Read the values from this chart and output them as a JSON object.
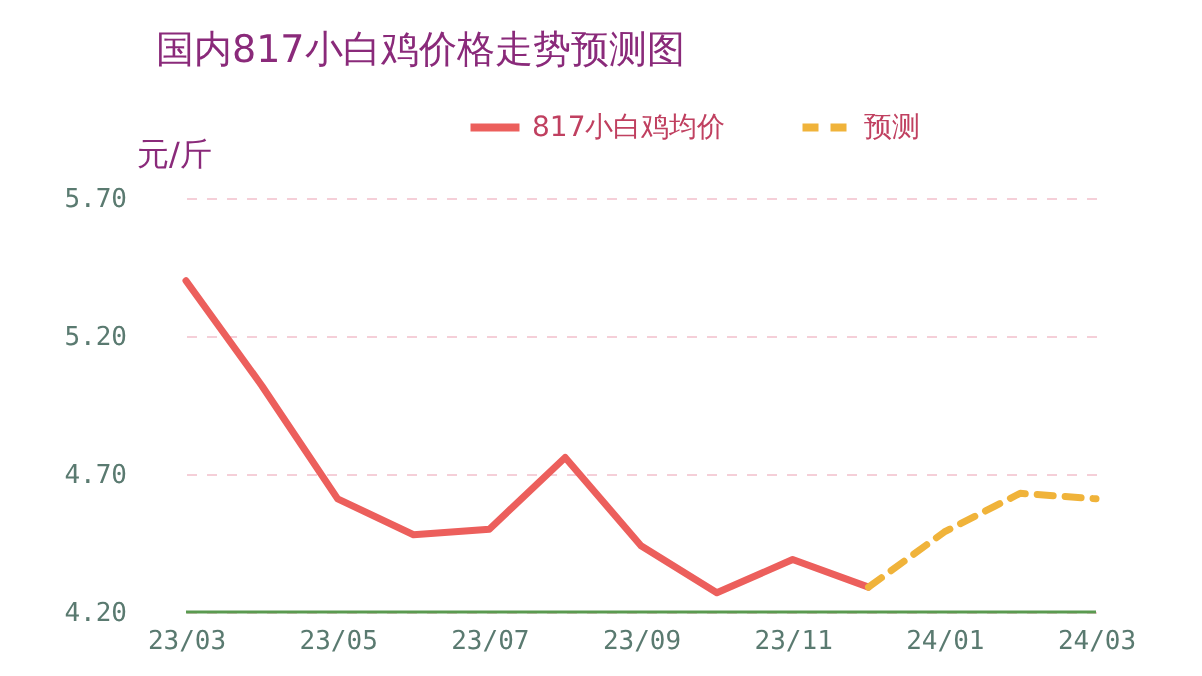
{
  "chart_data": {
    "type": "line",
    "title": "国内817小白鸡价格走势预测图",
    "ylabel": "元/斤",
    "categories": [
      "23/03",
      null,
      "23/05",
      null,
      "23/07",
      null,
      "23/09",
      null,
      "23/11",
      null,
      "24/01",
      null,
      "24/03"
    ],
    "series": [
      {
        "name": "817小白鸡均价",
        "color": "#ec5f5c",
        "line_style": "solid",
        "values": [
          5.4,
          5.02,
          4.61,
          4.48,
          4.5,
          4.76,
          4.44,
          4.27,
          4.39,
          4.29,
          null,
          null,
          null
        ]
      },
      {
        "name": "预测",
        "color": "#f0b33a",
        "line_style": "dashed",
        "values": [
          null,
          null,
          null,
          null,
          null,
          null,
          null,
          null,
          null,
          4.29,
          4.49,
          4.63,
          4.61
        ]
      }
    ],
    "ylim": [
      4.2,
      5.7
    ],
    "yticks": [
      {
        "value": 4.2,
        "label": "4.20"
      },
      {
        "value": 4.7,
        "label": "4.70"
      },
      {
        "value": 5.2,
        "label": "5.20"
      },
      {
        "value": 5.7,
        "label": "5.70"
      }
    ],
    "grid": "y",
    "legend": "top right",
    "marker": "none"
  }
}
